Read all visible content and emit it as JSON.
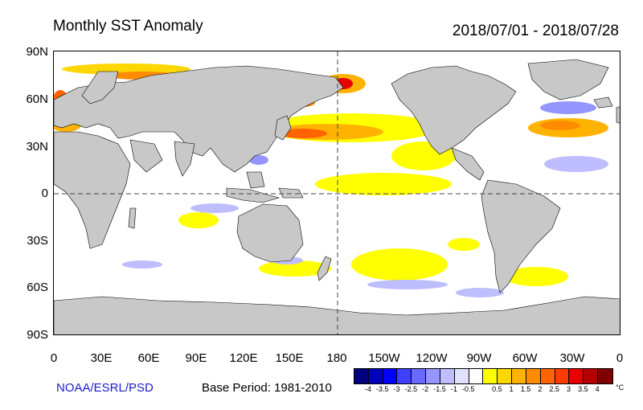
{
  "title": "Monthly SST Anomaly",
  "period": "2018/07/01 - 2018/07/28",
  "lat_labels": [
    "90N",
    "60N",
    "30N",
    "0",
    "30S",
    "60S",
    "90S"
  ],
  "lon_labels": [
    "0",
    "30E",
    "60E",
    "90E",
    "120E",
    "150E",
    "180",
    "150W",
    "120W",
    "90W",
    "60W",
    "30W",
    "0"
  ],
  "source": "NOAA/ESRL/PSD",
  "base_period": "Base Period: 1981-2010",
  "colorbar": {
    "colors": [
      "#00007f",
      "#0000bf",
      "#0000ff",
      "#3f3fff",
      "#6a6aff",
      "#9595ff",
      "#bdbdff",
      "#e0e0ff",
      "#ffffff",
      "#ffff00",
      "#ffd700",
      "#ffb300",
      "#ff8c00",
      "#ff6400",
      "#ff3c00",
      "#e60000",
      "#b40000",
      "#7f0000"
    ],
    "tick_labels": [
      "-4",
      "-3.5",
      "-3",
      "-2.5",
      "-2",
      "-1.5",
      "-1",
      "-0.5",
      "0.5",
      "1",
      "1.5",
      "2",
      "2.5",
      "3",
      "3.5",
      "4"
    ],
    "units": "°C"
  },
  "colors": {
    "land": "#c8c8c8",
    "ocean": "#ffffff",
    "warm_light": "#ffff00",
    "warm_mid": "#ffb300",
    "warm_strong": "#ff6400",
    "warm_extreme": "#e60000",
    "cool_light": "#bdbdff",
    "cool_mid": "#9595ff",
    "cool_strong": "#3f3fff"
  }
}
